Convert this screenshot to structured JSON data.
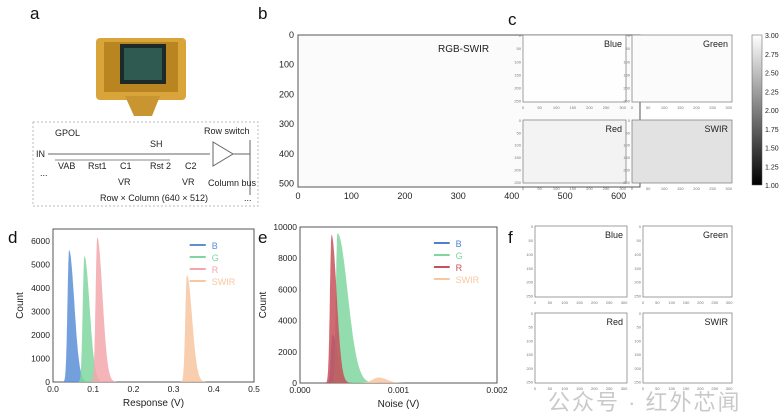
{
  "panel_labels": [
    "a",
    "b",
    "c",
    "d",
    "e",
    "f"
  ],
  "panel_a": {
    "circuit_labels": {
      "gpol": "GPOL",
      "in": "IN",
      "vab": "VAB",
      "rst1": "Rst1",
      "c1": "C1",
      "sh": "SH",
      "rst2": "Rst 2",
      "c2": "C2",
      "vr1": "VR",
      "vr2": "VR",
      "row_switch": "Row switch",
      "column_bus": "Column bus",
      "ellipsis": "...",
      "array": "Row × Column (640 × 512)"
    }
  },
  "panel_b": {
    "title": "RGB-SWIR",
    "x_ticks": [
      "0",
      "100",
      "200",
      "300",
      "400",
      "500",
      "600"
    ],
    "y_ticks": [
      "0",
      "100",
      "200",
      "300",
      "400",
      "500"
    ],
    "xlim": [
      0,
      640
    ],
    "ylim": [
      0,
      512
    ]
  },
  "panel_c": {
    "panels": [
      "Blue",
      "Green",
      "Red",
      "SWIR"
    ],
    "x_ticks": [
      "0",
      "50",
      "100",
      "150",
      "200",
      "250",
      "300"
    ],
    "y_ticks": [
      "0",
      "50",
      "100",
      "150",
      "200",
      "250"
    ],
    "colorbar_ticks": [
      "3.00",
      "2.75",
      "2.50",
      "2.25",
      "2.00",
      "1.75",
      "1.50",
      "1.25",
      "1.00"
    ],
    "colorbar_range": [
      1.0,
      3.0
    ]
  },
  "panel_f": {
    "panels": [
      "Blue",
      "Green",
      "Red",
      "SWIR"
    ]
  },
  "chart_data": [
    {
      "type": "area",
      "panel": "d",
      "xlabel": "Response (V)",
      "ylabel": "Count",
      "xlim": [
        0,
        0.5
      ],
      "ylim": [
        0,
        6500
      ],
      "x_ticks": [
        "0.0",
        "0.1",
        "0.2",
        "0.3",
        "0.4",
        "0.5"
      ],
      "y_ticks": [
        "0",
        "1000",
        "2000",
        "3000",
        "4000",
        "5000",
        "6000"
      ],
      "legend": "top-right",
      "series": [
        {
          "name": "B",
          "peak_x": 0.04,
          "peak_count": 5600,
          "color": "#5b8fd6"
        },
        {
          "name": "G",
          "peak_x": 0.078,
          "peak_count": 5350,
          "color": "#7fd6a0"
        },
        {
          "name": "R",
          "peak_x": 0.11,
          "peak_count": 6150,
          "color": "#f2a7ab"
        },
        {
          "name": "SWIR",
          "peak_x": 0.333,
          "peak_count": 4550,
          "color": "#f8c6a0"
        }
      ]
    },
    {
      "type": "area",
      "panel": "e",
      "xlabel": "Noise (V)",
      "ylabel": "Count",
      "xlim": [
        0,
        0.002
      ],
      "ylim": [
        0,
        10000
      ],
      "x_ticks": [
        "0.000",
        "0.001",
        "0.002"
      ],
      "y_ticks": [
        "0",
        "2000",
        "4000",
        "6000",
        "8000",
        "10000"
      ],
      "legend": "top-right",
      "series": [
        {
          "name": "B",
          "peak_x": 0.00033,
          "peak_count": 3100,
          "color": "#4f7fd0"
        },
        {
          "name": "G",
          "peak_x": 0.00038,
          "peak_count": 9600,
          "color": "#7fd6a0"
        },
        {
          "name": "R",
          "peak_x": 0.00032,
          "peak_count": 9500,
          "color": "#c8505a"
        },
        {
          "name": "SWIR",
          "peak_x": 0.0008,
          "peak_count": 350,
          "color": "#f8c6a0"
        }
      ]
    }
  ],
  "watermark": "公众号 · 红外芯闻"
}
